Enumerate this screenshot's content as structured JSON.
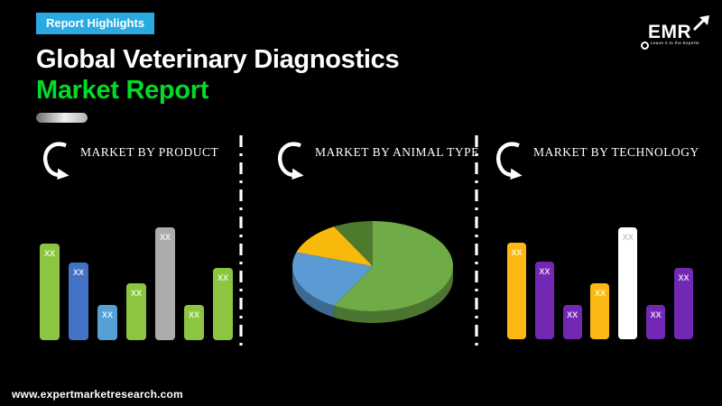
{
  "badge": {
    "label": "Report Highlights",
    "bg_color": "#29ABE2"
  },
  "logo": {
    "word": "EMR",
    "tagline": "Leave it to the Experts"
  },
  "title": {
    "line1": "Global Veterinary Diagnostics",
    "line2": "Market Report",
    "line2_color": "#00DC28"
  },
  "sections": [
    {
      "heading": "MARKET BY PRODUCT"
    },
    {
      "heading": "MARKET BY ANIMAL TYPE"
    },
    {
      "heading": "MARKET BY TECHNOLOGY"
    }
  ],
  "chart_data": [
    {
      "type": "bar",
      "title": "MARKET BY PRODUCT",
      "value_labels": [
        "XX",
        "XX",
        "XX",
        "XX",
        "XX",
        "XX",
        "XX"
      ],
      "relative_heights": [
        107,
        86,
        39,
        63,
        125,
        39,
        80
      ],
      "bar_colors": [
        "#8CC640",
        "#4472C4",
        "#56A0D8",
        "#8CC640",
        "#ACACAC",
        "#8CC640",
        "#8CC640"
      ],
      "ylabel": "",
      "xlabel": "",
      "grid": false,
      "legend": "none"
    },
    {
      "type": "pie",
      "title": "MARKET BY ANIMAL TYPE",
      "style": "3d",
      "slices": [
        {
          "pct": 58,
          "color": "#6FAC47"
        },
        {
          "pct": 22,
          "color": "#5B9BD5"
        },
        {
          "pct": 12,
          "color": "#F7B90B"
        },
        {
          "pct": 8,
          "color": "#4E7A2D"
        }
      ],
      "legend": "none"
    },
    {
      "type": "bar",
      "title": "MARKET BY TECHNOLOGY",
      "value_labels": [
        "XX",
        "XX",
        "XX",
        "XX",
        "XX",
        "XX",
        "XX"
      ],
      "relative_heights": [
        107,
        86,
        38,
        62,
        124,
        38,
        79
      ],
      "bar_colors": [
        "#FDB913",
        "#7328B4",
        "#7328B4",
        "#FDB913",
        "#FFFFFF",
        "#7328B4",
        "#7328B4"
      ],
      "ylabel": "",
      "xlabel": "",
      "grid": false,
      "legend": "none"
    }
  ],
  "footer": {
    "url": "www.expertmarketresearch.com"
  }
}
